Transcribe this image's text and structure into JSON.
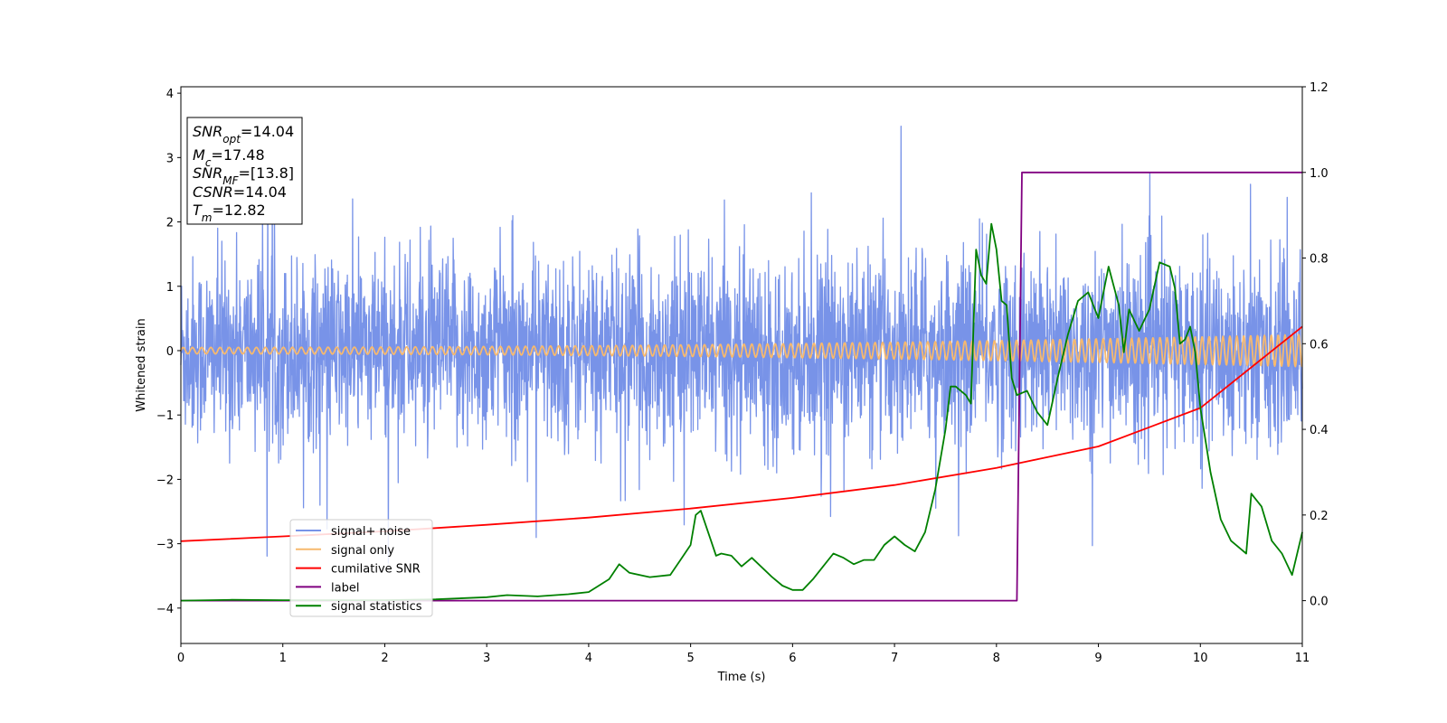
{
  "chart_data": {
    "type": "line",
    "xlabel": "Time (s)",
    "ylabel": "Whitened strain",
    "xlim": [
      0,
      11
    ],
    "ylim": [
      -4.55,
      4.1
    ],
    "y2lim": [
      -0.1,
      1.2
    ],
    "xticks": [
      0,
      1,
      2,
      3,
      4,
      5,
      6,
      7,
      8,
      9,
      10,
      11
    ],
    "yticks": [
      -4,
      -3,
      -2,
      -1,
      0,
      1,
      2,
      3,
      4
    ],
    "y2ticks": [
      0.0,
      0.2,
      0.4,
      0.6,
      0.8,
      1.0,
      1.2
    ],
    "grid": false,
    "legend_position": "lower-left",
    "annotation": {
      "lines": [
        {
          "name": "SNR",
          "sub": "opt",
          "value": "=14.04"
        },
        {
          "name": "M",
          "sub": "c",
          "value": "=17.48"
        },
        {
          "name": "SNR",
          "sub": "MF",
          "value": "=[13.8]"
        },
        {
          "name": "CSNR",
          "sub": "",
          "value": "=14.04"
        },
        {
          "name": "T",
          "sub": "m",
          "value": "=12.82"
        }
      ]
    },
    "series": [
      {
        "name": "signal+ noise",
        "color": "#7893e8",
        "axis": "left",
        "description_values": {
          "typical_range": [
            -2.0,
            2.0
          ],
          "peak_max": 3.7,
          "peak_min": -3.3
        }
      },
      {
        "name": "signal only",
        "color": "#f7b96e",
        "axis": "left",
        "amplitude_start": 0.05,
        "amplitude_end": 0.25
      },
      {
        "name": "cumilative SNR",
        "color": "#ff0000",
        "axis": "right",
        "x": [
          0,
          1,
          2,
          3,
          4,
          5,
          6,
          7,
          8,
          9,
          10,
          11
        ],
        "y": [
          0.139,
          0.15,
          0.162,
          0.177,
          0.194,
          0.215,
          0.24,
          0.27,
          0.31,
          0.36,
          0.45,
          0.64
        ]
      },
      {
        "name": "label",
        "color": "#800080",
        "axis": "right",
        "x": [
          0,
          8.2,
          8.25,
          11
        ],
        "y": [
          0.0,
          0.0,
          1.0,
          1.0
        ]
      },
      {
        "name": "signal statistics",
        "color": "#008000",
        "axis": "right",
        "x": [
          0,
          0.5,
          1,
          1.5,
          2,
          2.5,
          3,
          3.2,
          3.5,
          3.8,
          4,
          4.2,
          4.3,
          4.4,
          4.6,
          4.8,
          4.9,
          5,
          5.05,
          5.1,
          5.2,
          5.25,
          5.3,
          5.4,
          5.5,
          5.6,
          5.8,
          5.9,
          6,
          6.1,
          6.2,
          6.3,
          6.4,
          6.5,
          6.6,
          6.7,
          6.8,
          6.9,
          7,
          7.1,
          7.2,
          7.3,
          7.4,
          7.5,
          7.55,
          7.6,
          7.7,
          7.75,
          7.8,
          7.85,
          7.9,
          7.95,
          8,
          8.05,
          8.1,
          8.15,
          8.2,
          8.3,
          8.4,
          8.5,
          8.6,
          8.7,
          8.8,
          8.9,
          9,
          9.1,
          9.2,
          9.25,
          9.3,
          9.4,
          9.5,
          9.6,
          9.7,
          9.75,
          9.8,
          9.85,
          9.9,
          9.95,
          10,
          10.1,
          10.2,
          10.3,
          10.4,
          10.45,
          10.5,
          10.6,
          10.7,
          10.8,
          10.9,
          11
        ],
        "y": [
          0.0,
          0.002,
          0.001,
          0.001,
          0.001,
          0.003,
          0.008,
          0.013,
          0.01,
          0.015,
          0.02,
          0.05,
          0.085,
          0.065,
          0.055,
          0.06,
          0.095,
          0.13,
          0.2,
          0.21,
          0.14,
          0.105,
          0.11,
          0.105,
          0.08,
          0.1,
          0.055,
          0.035,
          0.025,
          0.025,
          0.05,
          0.08,
          0.11,
          0.1,
          0.085,
          0.095,
          0.095,
          0.13,
          0.15,
          0.13,
          0.115,
          0.16,
          0.26,
          0.4,
          0.5,
          0.5,
          0.48,
          0.46,
          0.82,
          0.76,
          0.74,
          0.88,
          0.82,
          0.7,
          0.69,
          0.52,
          0.48,
          0.49,
          0.44,
          0.41,
          0.52,
          0.62,
          0.7,
          0.72,
          0.66,
          0.78,
          0.69,
          0.58,
          0.68,
          0.63,
          0.68,
          0.79,
          0.78,
          0.73,
          0.6,
          0.61,
          0.64,
          0.58,
          0.45,
          0.3,
          0.19,
          0.14,
          0.12,
          0.11,
          0.25,
          0.22,
          0.14,
          0.11,
          0.06,
          0.16
        ]
      }
    ]
  }
}
